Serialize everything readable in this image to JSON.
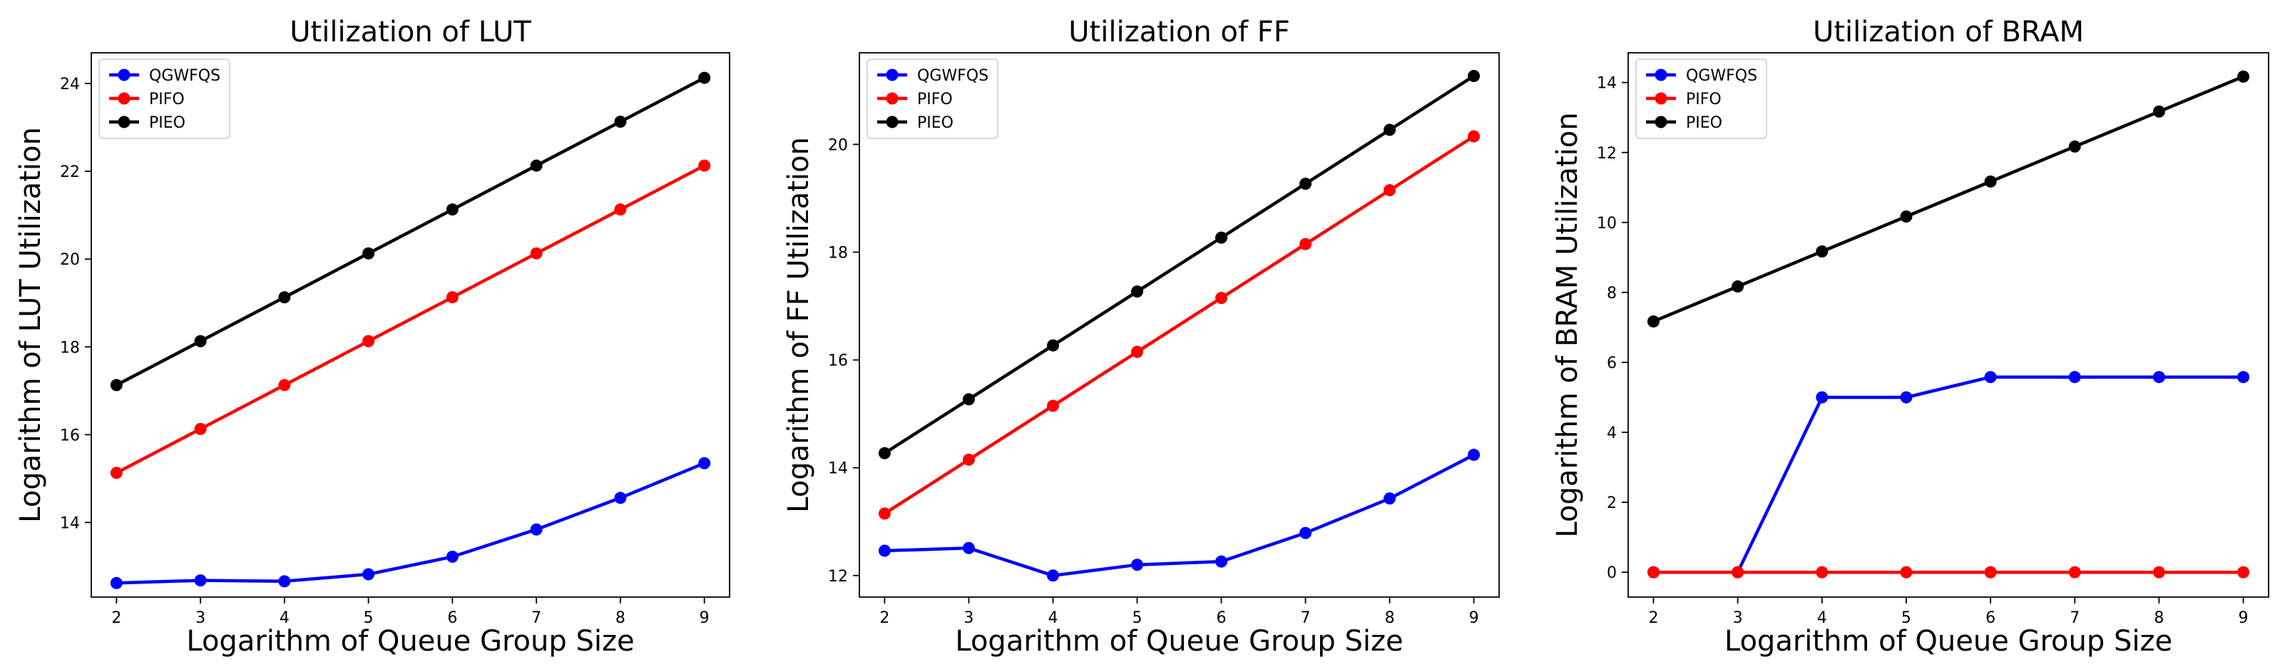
{
  "chart_data": [
    {
      "type": "line",
      "title": "Utilization of LUT",
      "xlabel": "Logarithm of Queue Group Size",
      "ylabel": "Logarithm of LUT Utilization",
      "x": [
        2,
        3,
        4,
        5,
        6,
        7,
        8,
        9
      ],
      "xlim": [
        1.7,
        9.3
      ],
      "ylim": [
        12.3,
        24.7
      ],
      "yticks": [
        14,
        16,
        18,
        20,
        22,
        24
      ],
      "legend_position": "upper-left",
      "series": [
        {
          "name": "QGWFQS",
          "color": "#0000ff",
          "values": [
            12.62,
            12.68,
            12.66,
            12.82,
            13.22,
            13.84,
            14.56,
            15.35
          ]
        },
        {
          "name": "PIFO",
          "color": "#ff0000",
          "values": [
            15.13,
            16.13,
            17.13,
            18.13,
            19.13,
            20.13,
            21.13,
            22.13
          ]
        },
        {
          "name": "PIEO",
          "color": "#000000",
          "values": [
            17.13,
            18.13,
            19.13,
            20.13,
            21.13,
            22.13,
            23.13,
            24.13
          ]
        }
      ]
    },
    {
      "type": "line",
      "title": "Utilization of FF",
      "xlabel": "Logarithm of Queue Group Size",
      "ylabel": "Logarithm of FF Utilization",
      "x": [
        2,
        3,
        4,
        5,
        6,
        7,
        8,
        9
      ],
      "xlim": [
        1.7,
        9.3
      ],
      "ylim": [
        11.6,
        21.7
      ],
      "yticks": [
        12,
        14,
        16,
        18,
        20
      ],
      "legend_position": "upper-left",
      "series": [
        {
          "name": "QGWFQS",
          "color": "#0000ff",
          "values": [
            12.46,
            12.51,
            12.0,
            12.2,
            12.26,
            12.79,
            13.43,
            14.24
          ]
        },
        {
          "name": "PIFO",
          "color": "#ff0000",
          "values": [
            13.15,
            14.15,
            15.15,
            16.15,
            17.15,
            18.15,
            19.15,
            20.15
          ]
        },
        {
          "name": "PIEO",
          "color": "#000000",
          "values": [
            14.27,
            15.27,
            16.27,
            17.27,
            18.27,
            19.27,
            20.27,
            21.27
          ]
        }
      ]
    },
    {
      "type": "line",
      "title": "Utilization of BRAM",
      "xlabel": "Logarithm of Queue Group Size",
      "ylabel": "Logarithm of BRAM Utilization",
      "x": [
        2,
        3,
        4,
        5,
        6,
        7,
        8,
        9
      ],
      "xlim": [
        1.7,
        9.3
      ],
      "ylim": [
        -0.71,
        14.85
      ],
      "yticks": [
        0,
        2,
        4,
        6,
        8,
        10,
        12,
        14
      ],
      "legend_position": "upper-left",
      "series": [
        {
          "name": "QGWFQS",
          "color": "#0000ff",
          "values": [
            0,
            0,
            5.0,
            5.0,
            5.58,
            5.58,
            5.58,
            5.58
          ]
        },
        {
          "name": "PIFO",
          "color": "#ff0000",
          "values": [
            0,
            0,
            0,
            0,
            0,
            0,
            0,
            0
          ]
        },
        {
          "name": "PIEO",
          "color": "#000000",
          "values": [
            7.17,
            8.17,
            9.17,
            10.17,
            11.17,
            12.17,
            13.17,
            14.17
          ]
        }
      ]
    }
  ]
}
